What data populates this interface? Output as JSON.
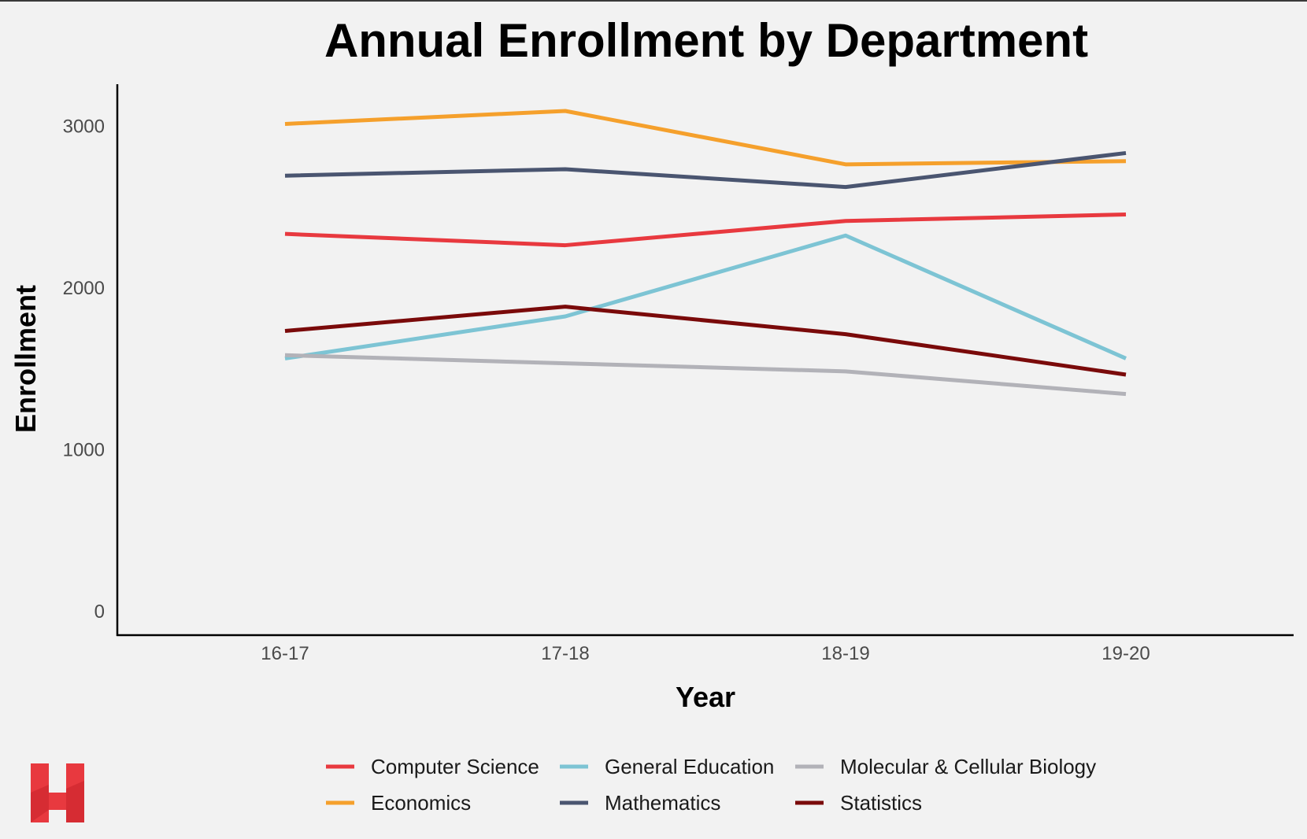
{
  "chart_data": {
    "type": "line",
    "title": "Annual Enrollment by Department",
    "xlabel": "Year",
    "ylabel": "Enrollment",
    "categories": [
      "16-17",
      "17-18",
      "18-19",
      "19-20"
    ],
    "ylim": [
      0,
      3250
    ],
    "yticks": [
      0,
      1000,
      2000,
      3000
    ],
    "grid": false,
    "legend_position": "bottom",
    "series": [
      {
        "name": "Computer Science",
        "color": "#e8393f",
        "values": [
          2330,
          2260,
          2410,
          2450
        ]
      },
      {
        "name": "Economics",
        "color": "#f5a02c",
        "values": [
          3010,
          3090,
          2760,
          2780
        ]
      },
      {
        "name": "General Education",
        "color": "#7dc4d4",
        "values": [
          1560,
          1820,
          2320,
          1560
        ]
      },
      {
        "name": "Mathematics",
        "color": "#4a5570",
        "values": [
          2690,
          2730,
          2620,
          2830
        ]
      },
      {
        "name": "Molecular & Cellular Biology",
        "color": "#b2b2b8",
        "values": [
          1580,
          1530,
          1480,
          1340
        ]
      },
      {
        "name": "Statistics",
        "color": "#7a0a0a",
        "values": [
          1730,
          1880,
          1710,
          1460
        ]
      }
    ]
  },
  "logo": {
    "icon": "h-logo-icon",
    "color": "#e8393f"
  }
}
